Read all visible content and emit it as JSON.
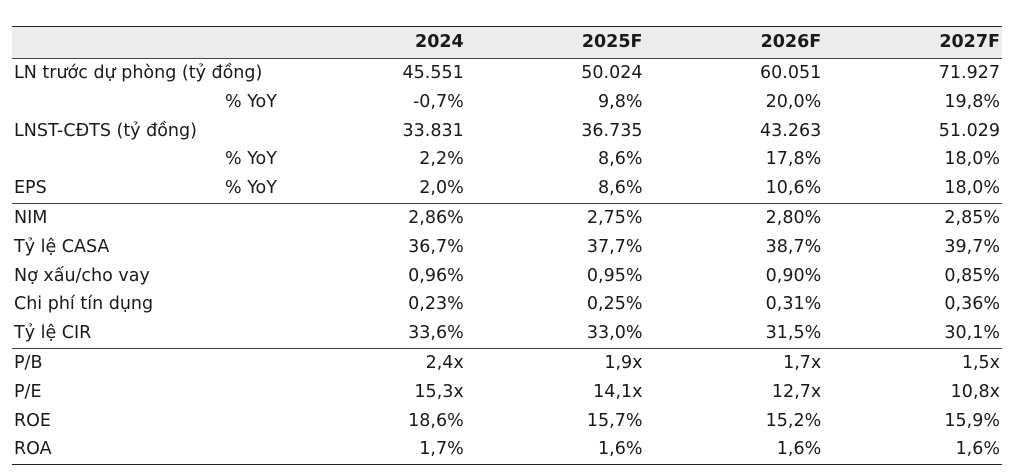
{
  "header": {
    "years": [
      "2024",
      "2025F",
      "2026F",
      "2027F"
    ]
  },
  "groups": [
    {
      "rows": [
        {
          "label": "LN trước dự phòng (tỷ đồng)",
          "sub": "",
          "values": [
            "45.551",
            "50.024",
            "60.051",
            "71.927"
          ]
        },
        {
          "label": "",
          "sub": "% YoY",
          "values": [
            "-0,7%",
            "9,8%",
            "20,0%",
            "19,8%"
          ]
        },
        {
          "label": "LNST-CĐTS (tỷ đồng)",
          "sub": "",
          "values": [
            "33.831",
            "36.735",
            "43.263",
            "51.029"
          ]
        },
        {
          "label": "",
          "sub": "% YoY",
          "values": [
            "2,2%",
            "8,6%",
            "17,8%",
            "18,0%"
          ]
        },
        {
          "label": "EPS",
          "sub": "% YoY",
          "values": [
            "2,0%",
            "8,6%",
            "10,6%",
            "18,0%"
          ]
        }
      ]
    },
    {
      "rows": [
        {
          "label": "NIM",
          "sub": "",
          "values": [
            "2,86%",
            "2,75%",
            "2,80%",
            "2,85%"
          ]
        },
        {
          "label": "Tỷ lệ CASA",
          "sub": "",
          "values": [
            "36,7%",
            "37,7%",
            "38,7%",
            "39,7%"
          ]
        },
        {
          "label": "Nợ xấu/cho vay",
          "sub": "",
          "values": [
            "0,96%",
            "0,95%",
            "0,90%",
            "0,85%"
          ]
        },
        {
          "label": "Chi phí tín dụng",
          "sub": "",
          "values": [
            "0,23%",
            "0,25%",
            "0,31%",
            "0,36%"
          ]
        },
        {
          "label": "Tỷ lệ CIR",
          "sub": "",
          "values": [
            "33,6%",
            "33,0%",
            "31,5%",
            "30,1%"
          ]
        }
      ]
    },
    {
      "rows": [
        {
          "label": "P/B",
          "sub": "",
          "values": [
            "2,4x",
            "1,9x",
            "1,7x",
            "1,5x"
          ]
        },
        {
          "label": "P/E",
          "sub": "",
          "values": [
            "15,3x",
            "14,1x",
            "12,7x",
            "10,8x"
          ]
        },
        {
          "label": "ROE",
          "sub": "",
          "values": [
            "18,6%",
            "15,7%",
            "15,2%",
            "15,9%"
          ]
        },
        {
          "label": "ROA",
          "sub": "",
          "values": [
            "1,7%",
            "1,6%",
            "1,6%",
            "1,6%"
          ]
        }
      ]
    }
  ]
}
